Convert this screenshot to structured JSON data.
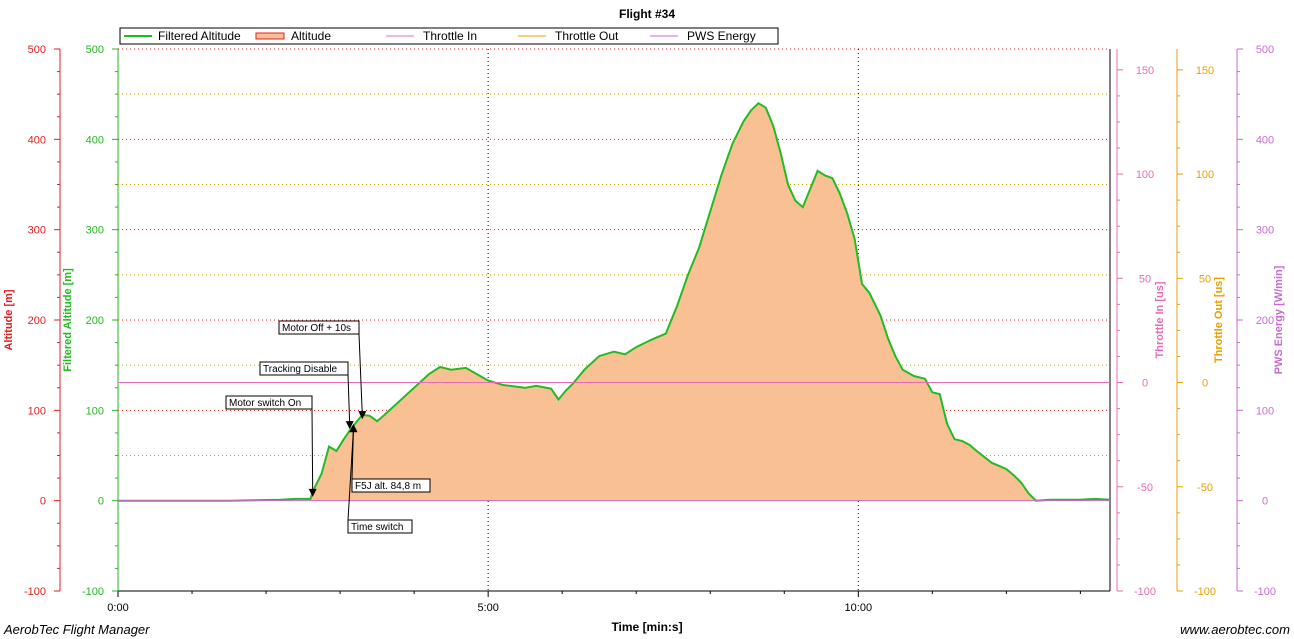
{
  "colors": {
    "altitude_axis": "#e02020",
    "filtered": "#22bb22",
    "fill": "#f9c193",
    "throttle_in": "#e86cb6",
    "throttle_out": "#e8a100",
    "pws": "#c86cd0"
  },
  "footer": {
    "app_name": "AerobTec Flight Manager",
    "website": "www.aerobtec.com"
  },
  "chart_data": {
    "type": "area",
    "title": "Flight #34",
    "xlabel": "Time [min:s]",
    "x_range_min": [
      0,
      13.4
    ],
    "x_ticks": [
      {
        "value": 0,
        "label": "0:00"
      },
      {
        "value": 5,
        "label": "5:00"
      },
      {
        "value": 10,
        "label": "10:00"
      }
    ],
    "axes": [
      {
        "name": "altitude",
        "label": "Altitude [m]",
        "range": [
          -100,
          500
        ],
        "ticks": [
          "500",
          "400",
          "300",
          "200",
          "100",
          "0",
          "-100"
        ]
      },
      {
        "name": "filtered",
        "label": "Filtered Altitude [m]",
        "range": [
          -100,
          500
        ],
        "ticks": [
          "500",
          "400",
          "300",
          "200",
          "100",
          "0",
          "-100"
        ]
      },
      {
        "name": "throttle_in",
        "label": "Throttle In [us]",
        "range": [
          -100,
          160
        ],
        "ticks": [
          "150",
          "100",
          "50",
          "0",
          "-50",
          "-100"
        ]
      },
      {
        "name": "throttle_out",
        "label": "Throttle Out [us]",
        "range": [
          -100,
          160
        ],
        "ticks": [
          "150",
          "100",
          "50",
          "0",
          "-50",
          "-100"
        ]
      },
      {
        "name": "pws",
        "label": "PWS Energy [W/min]",
        "range": [
          -100,
          500
        ],
        "ticks": [
          "500",
          "400",
          "300",
          "200",
          "100",
          "0",
          "-100"
        ]
      }
    ],
    "legend": {
      "placement": "top-left",
      "entries": [
        "Filtered Altitude",
        "Altitude",
        "Throttle In",
        "Throttle Out",
        "PWS Energy"
      ]
    },
    "series": [
      {
        "name": "Filtered Altitude",
        "axis": "filtered",
        "points": [
          [
            0,
            0
          ],
          [
            1.5,
            0
          ],
          [
            2.2,
            1
          ],
          [
            2.4,
            2
          ],
          [
            2.6,
            2
          ],
          [
            2.63,
            10
          ],
          [
            2.75,
            30
          ],
          [
            2.85,
            60
          ],
          [
            2.95,
            55
          ],
          [
            3.05,
            68
          ],
          [
            3.15,
            80
          ],
          [
            3.25,
            90
          ],
          [
            3.3,
            95
          ],
          [
            3.4,
            94
          ],
          [
            3.5,
            88
          ],
          [
            3.6,
            95
          ],
          [
            3.8,
            110
          ],
          [
            4.0,
            125
          ],
          [
            4.2,
            140
          ],
          [
            4.35,
            148
          ],
          [
            4.5,
            145
          ],
          [
            4.7,
            147
          ],
          [
            4.85,
            140
          ],
          [
            5.0,
            133
          ],
          [
            5.2,
            128
          ],
          [
            5.5,
            125
          ],
          [
            5.65,
            127
          ],
          [
            5.85,
            124
          ],
          [
            5.95,
            112
          ],
          [
            6.05,
            122
          ],
          [
            6.15,
            130
          ],
          [
            6.3,
            145
          ],
          [
            6.5,
            160
          ],
          [
            6.7,
            165
          ],
          [
            6.85,
            162
          ],
          [
            7.0,
            170
          ],
          [
            7.2,
            178
          ],
          [
            7.4,
            185
          ],
          [
            7.55,
            215
          ],
          [
            7.7,
            250
          ],
          [
            7.85,
            280
          ],
          [
            8.0,
            320
          ],
          [
            8.15,
            360
          ],
          [
            8.3,
            395
          ],
          [
            8.45,
            420
          ],
          [
            8.55,
            432
          ],
          [
            8.65,
            440
          ],
          [
            8.75,
            435
          ],
          [
            8.85,
            415
          ],
          [
            8.95,
            385
          ],
          [
            9.05,
            350
          ],
          [
            9.15,
            332
          ],
          [
            9.25,
            325
          ],
          [
            9.35,
            345
          ],
          [
            9.45,
            365
          ],
          [
            9.55,
            360
          ],
          [
            9.65,
            357
          ],
          [
            9.75,
            340
          ],
          [
            9.85,
            318
          ],
          [
            9.95,
            290
          ],
          [
            10.05,
            240
          ],
          [
            10.15,
            230
          ],
          [
            10.3,
            205
          ],
          [
            10.4,
            180
          ],
          [
            10.5,
            160
          ],
          [
            10.6,
            145
          ],
          [
            10.75,
            138
          ],
          [
            10.9,
            135
          ],
          [
            11.0,
            120
          ],
          [
            11.1,
            118
          ],
          [
            11.2,
            85
          ],
          [
            11.3,
            68
          ],
          [
            11.4,
            66
          ],
          [
            11.5,
            62
          ],
          [
            11.6,
            55
          ],
          [
            11.8,
            42
          ],
          [
            12.0,
            35
          ],
          [
            12.1,
            28
          ],
          [
            12.2,
            20
          ],
          [
            12.3,
            8
          ],
          [
            12.4,
            0
          ],
          [
            12.6,
            1
          ],
          [
            13.0,
            1
          ],
          [
            13.2,
            2
          ],
          [
            13.4,
            1
          ]
        ]
      },
      {
        "name": "Altitude",
        "axis": "altitude",
        "note_style": "filled area under filtered altitude"
      },
      {
        "name": "Throttle Out",
        "axis": "throttle_out",
        "constant": 0
      },
      {
        "name": "Throttle In",
        "axis": "throttle_in",
        "constant": 0
      },
      {
        "name": "PWS Energy",
        "axis": "pws",
        "constant": 0
      }
    ],
    "annotations": [
      {
        "text": "Motor switch On",
        "x": 2.63,
        "y": 2
      },
      {
        "text": "Tracking Disable",
        "x": 3.13,
        "y": 77
      },
      {
        "text": "Motor Off + 10s",
        "x": 3.3,
        "y": 88
      },
      {
        "text": "F5J alt. 84,8 m",
        "x": 3.18,
        "y": 84.8
      },
      {
        "text": "Time switch",
        "x": 3.18,
        "y": 84.8
      }
    ]
  }
}
